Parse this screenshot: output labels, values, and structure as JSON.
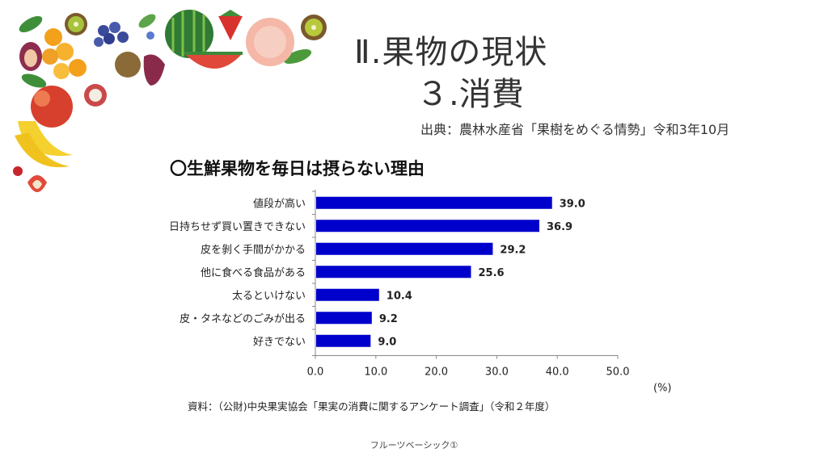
{
  "slide": {
    "title_line1": "Ⅱ.果物の現状",
    "title_line2": "３.消費",
    "source": "出典：農林水産省「果樹をめぐる情勢」令和3年10月",
    "footnote": "資料：（公財)中央果実協会「果実の消費に関するアンケート調査」（令和２年度）",
    "footer": "フルーツベーシック①"
  },
  "chart_data": {
    "type": "bar",
    "orientation": "horizontal",
    "title": "〇生鮮果物を毎日は摂らない理由",
    "categories": [
      "値段が高い",
      "日持ちせず買い置きできない",
      "皮を剝く手間がかかる",
      "他に食べる食品がある",
      "太るといけない",
      "皮・タネなどのごみが出る",
      "好きでない"
    ],
    "values": [
      39.0,
      36.9,
      29.2,
      25.6,
      10.4,
      9.2,
      9.0
    ],
    "value_labels": [
      "39.0",
      "36.9",
      "29.2",
      "25.6",
      "10.4",
      "9.2",
      "9.0"
    ],
    "xlim": [
      0,
      50
    ],
    "xticks": [
      "0.0",
      "10.0",
      "20.0",
      "30.0",
      "40.0",
      "50.0"
    ],
    "unit": "(%)",
    "bar_color": "#0000cc",
    "grid": false
  }
}
